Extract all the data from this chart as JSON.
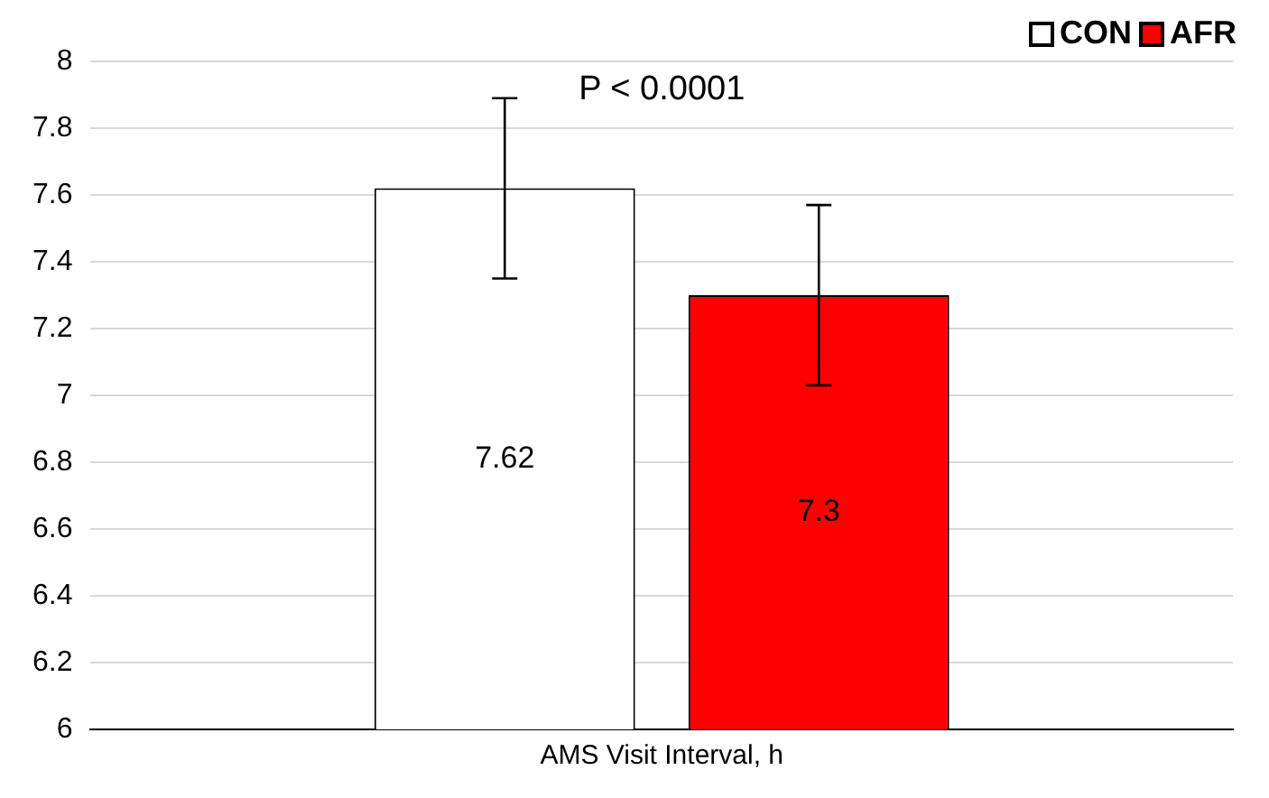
{
  "chart_data": {
    "type": "bar",
    "categories": [
      "AMS Visit Interval, h"
    ],
    "series": [
      {
        "name": "CON",
        "color": "#ffffff",
        "values": [
          7.62
        ],
        "errors": [
          0.27
        ]
      },
      {
        "name": "AFR",
        "color": "#ff0000",
        "values": [
          7.3
        ],
        "errors": [
          0.27
        ]
      }
    ],
    "ylim": [
      6,
      8
    ],
    "yticks": [
      6,
      6.2,
      6.4,
      6.6,
      6.8,
      7,
      7.2,
      7.4,
      7.6,
      7.8,
      8
    ],
    "grid": "y",
    "legend": "top right",
    "data_labels": true,
    "annotations": [
      "P < 0.0001"
    ]
  }
}
